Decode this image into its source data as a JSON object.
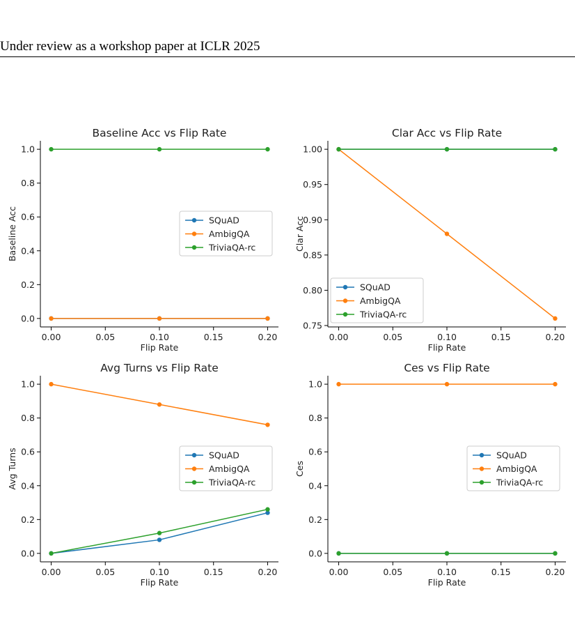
{
  "header": {
    "text": "Under review as a workshop paper at ICLR 2025"
  },
  "colors": {
    "SQuAD": "#1f77b4",
    "AmbigQA": "#ff7f0e",
    "TriviaQA-rc": "#2ca02c"
  },
  "chart_data": [
    {
      "type": "line",
      "title": "Baseline Acc vs Flip Rate",
      "xlabel": "Flip Rate",
      "ylabel": "Baseline Acc",
      "x": [
        0.0,
        0.1,
        0.2
      ],
      "xlim": [
        -0.01,
        0.21
      ],
      "ylim": [
        -0.05,
        1.05
      ],
      "xticks": [
        "0.00",
        "0.05",
        "0.10",
        "0.15",
        "0.20"
      ],
      "xtick_values": [
        0.0,
        0.05,
        0.1,
        0.15,
        0.2
      ],
      "yticks": [
        "0.0",
        "0.2",
        "0.4",
        "0.6",
        "0.8",
        "1.0"
      ],
      "ytick_values": [
        0.0,
        0.2,
        0.4,
        0.6,
        0.8,
        1.0
      ],
      "series": [
        {
          "name": "SQuAD",
          "values": [
            0.0,
            0.0,
            0.0
          ]
        },
        {
          "name": "AmbigQA",
          "values": [
            0.0,
            0.0,
            0.0
          ]
        },
        {
          "name": "TriviaQA-rc",
          "values": [
            1.0,
            1.0,
            1.0
          ]
        }
      ],
      "legend": "center-right",
      "grid": false
    },
    {
      "type": "line",
      "title": "Clar Acc vs Flip Rate",
      "xlabel": "Flip Rate",
      "ylabel": "Clar Acc",
      "x": [
        0.0,
        0.1,
        0.2
      ],
      "xlim": [
        -0.01,
        0.21
      ],
      "ylim": [
        0.748,
        1.012
      ],
      "xticks": [
        "0.00",
        "0.05",
        "0.10",
        "0.15",
        "0.20"
      ],
      "xtick_values": [
        0.0,
        0.05,
        0.1,
        0.15,
        0.2
      ],
      "yticks": [
        "0.75",
        "0.80",
        "0.85",
        "0.90",
        "0.95",
        "1.00"
      ],
      "ytick_values": [
        0.75,
        0.8,
        0.85,
        0.9,
        0.95,
        1.0
      ],
      "series": [
        {
          "name": "SQuAD",
          "values": [
            1.0,
            1.0,
            1.0
          ]
        },
        {
          "name": "AmbigQA",
          "values": [
            1.0,
            0.88,
            0.76
          ]
        },
        {
          "name": "TriviaQA-rc",
          "values": [
            1.0,
            1.0,
            1.0
          ]
        }
      ],
      "legend": "lower-left",
      "grid": false
    },
    {
      "type": "line",
      "title": "Avg Turns vs Flip Rate",
      "xlabel": "Flip Rate",
      "ylabel": "Avg Turns",
      "x": [
        0.0,
        0.1,
        0.2
      ],
      "xlim": [
        -0.01,
        0.21
      ],
      "ylim": [
        -0.05,
        1.05
      ],
      "xticks": [
        "0.00",
        "0.05",
        "0.10",
        "0.15",
        "0.20"
      ],
      "xtick_values": [
        0.0,
        0.05,
        0.1,
        0.15,
        0.2
      ],
      "yticks": [
        "0.0",
        "0.2",
        "0.4",
        "0.6",
        "0.8",
        "1.0"
      ],
      "ytick_values": [
        0.0,
        0.2,
        0.4,
        0.6,
        0.8,
        1.0
      ],
      "series": [
        {
          "name": "SQuAD",
          "values": [
            0.0,
            0.08,
            0.24
          ]
        },
        {
          "name": "AmbigQA",
          "values": [
            1.0,
            0.88,
            0.76
          ]
        },
        {
          "name": "TriviaQA-rc",
          "values": [
            0.0,
            0.12,
            0.26
          ]
        }
      ],
      "legend": "center-right",
      "grid": false
    },
    {
      "type": "line",
      "title": "Ces vs Flip Rate",
      "xlabel": "Flip Rate",
      "ylabel": "Ces",
      "x": [
        0.0,
        0.1,
        0.2
      ],
      "xlim": [
        -0.01,
        0.21
      ],
      "ylim": [
        -0.05,
        1.05
      ],
      "xticks": [
        "0.00",
        "0.05",
        "0.10",
        "0.15",
        "0.20"
      ],
      "xtick_values": [
        0.0,
        0.05,
        0.1,
        0.15,
        0.2
      ],
      "yticks": [
        "0.0",
        "0.2",
        "0.4",
        "0.6",
        "0.8",
        "1.0"
      ],
      "ytick_values": [
        0.0,
        0.2,
        0.4,
        0.6,
        0.8,
        1.0
      ],
      "series": [
        {
          "name": "SQuAD",
          "values": [
            0.0,
            0.0,
            0.0
          ]
        },
        {
          "name": "AmbigQA",
          "values": [
            1.0,
            1.0,
            1.0
          ]
        },
        {
          "name": "TriviaQA-rc",
          "values": [
            0.0,
            0.0,
            0.0
          ]
        }
      ],
      "legend": "center-right",
      "grid": false
    }
  ]
}
